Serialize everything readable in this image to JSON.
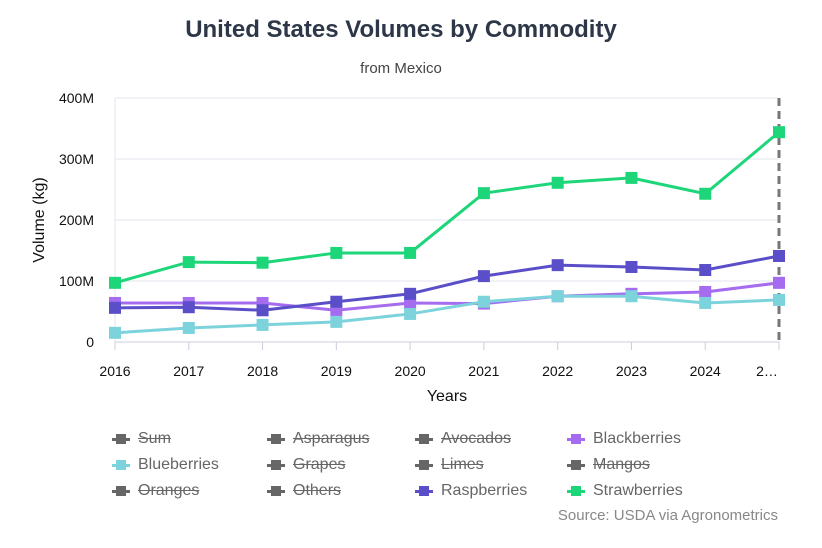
{
  "chart_data": {
    "type": "line",
    "title": "United States Volumes by Commodity",
    "subtitle": "from Mexico",
    "xlabel": "Years",
    "ylabel": "Volume (kg)",
    "categories": [
      "2016",
      "2017",
      "2018",
      "2019",
      "2020",
      "2021",
      "2022",
      "2023",
      "2024",
      "2…"
    ],
    "ylim": [
      0,
      400000000
    ],
    "yticks": [
      "0",
      "100M",
      "200M",
      "300M",
      "400M"
    ],
    "grid": true,
    "series": [
      {
        "name": "Blackberries",
        "color": "#a56cf0",
        "values": [
          64,
          64,
          64,
          52,
          64,
          63,
          75,
          79,
          82,
          97
        ]
      },
      {
        "name": "Blueberries",
        "color": "#7dd3dc",
        "values": [
          15,
          23,
          28,
          33,
          46,
          66,
          75,
          75,
          64,
          69
        ]
      },
      {
        "name": "Raspberries",
        "color": "#5a4fc8",
        "values": [
          56,
          57,
          52,
          66,
          79,
          108,
          126,
          123,
          118,
          141
        ]
      },
      {
        "name": "Strawberries",
        "color": "#1ed67a",
        "values": [
          97,
          131,
          130,
          146,
          146,
          244,
          261,
          269,
          243,
          344
        ]
      }
    ],
    "value_unit": "M kg",
    "legend_position": "bottom",
    "legend": [
      {
        "label": "Sum",
        "hidden": true
      },
      {
        "label": "Asparagus",
        "hidden": true
      },
      {
        "label": "Avocados",
        "hidden": true
      },
      {
        "label": "Blackberries",
        "hidden": false,
        "color": "#a56cf0"
      },
      {
        "label": "Blueberries",
        "hidden": false,
        "color": "#7dd3dc"
      },
      {
        "label": "Grapes",
        "hidden": true
      },
      {
        "label": "Limes",
        "hidden": true
      },
      {
        "label": "Mangos",
        "hidden": true
      },
      {
        "label": "Oranges",
        "hidden": true
      },
      {
        "label": "Others",
        "hidden": true
      },
      {
        "label": "Raspberries",
        "hidden": false,
        "color": "#5a4fc8"
      },
      {
        "label": "Strawberries",
        "hidden": false,
        "color": "#1ed67a"
      }
    ],
    "source": "Source: USDA via Agronometrics"
  }
}
